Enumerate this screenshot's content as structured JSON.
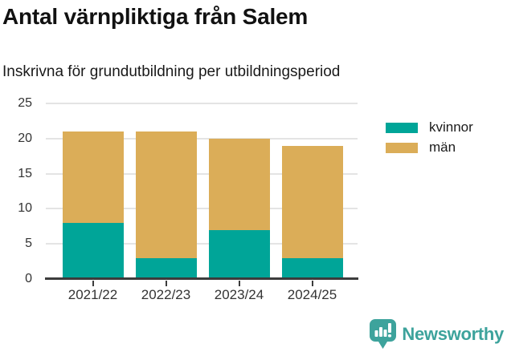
{
  "header": {
    "title": "Antal värnpliktiga från Salem",
    "subtitle": "Inskrivna för grundutbildning per utbildningsperiod"
  },
  "chart_data": {
    "type": "bar",
    "stacked": true,
    "title": "Antal värnpliktiga från Salem",
    "subtitle": "Inskrivna för grundutbildning per utbildningsperiod",
    "categories": [
      "2021/22",
      "2022/23",
      "2023/24",
      "2024/25"
    ],
    "series": [
      {
        "name": "kvinnor",
        "color": "#00A598",
        "values": [
          8,
          3,
          7,
          3
        ]
      },
      {
        "name": "män",
        "color": "#DBAD58",
        "values": [
          13,
          18,
          13,
          16
        ]
      }
    ],
    "stack_totals": [
      21,
      21,
      20,
      19
    ],
    "xlabel": "",
    "ylabel": "",
    "ylim": [
      0,
      25
    ],
    "yticks": [
      0,
      5,
      10,
      15,
      20,
      25
    ],
    "grid": true,
    "legend_position": "top-right"
  },
  "footer": {
    "brand": "Newsworthy",
    "brand_color": "#3DA39C",
    "logo_icon": "newsworthy-bar-chart-bubble-icon"
  },
  "colors": {
    "axis": "#3C3C3C",
    "grid": "#E4E4E4",
    "tick_text": "#333333"
  }
}
